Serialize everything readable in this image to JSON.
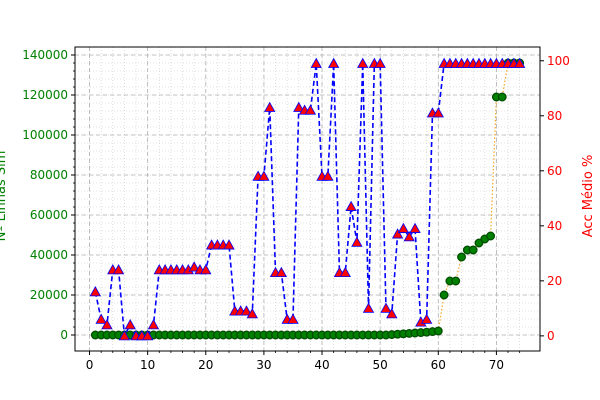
{
  "chart_data": {
    "type": "line",
    "xlabel": "",
    "ylabel_left": "Nº Linhas Sim",
    "ylabel_right": "Acc Médio %",
    "xlim": [
      -2.5,
      77.5
    ],
    "ylim_left": [
      -8000,
      144000
    ],
    "ylim_right": [
      -5.5,
      105
    ],
    "x_ticks": [
      0,
      10,
      20,
      30,
      40,
      50,
      60,
      70
    ],
    "y_left_ticks": [
      0,
      20000,
      40000,
      60000,
      80000,
      100000,
      120000,
      140000
    ],
    "y_right_ticks": [
      0,
      20,
      40,
      60,
      80,
      100
    ],
    "grid": true,
    "colors": {
      "left_axis": "#008000",
      "right_axis": "#ff0000",
      "acc_line": "#0000ff",
      "acc_marker": "#ff0000",
      "acc_marker_edge": "#0000ff",
      "rows_line": "#f5a623",
      "rows_marker": "#008000",
      "rows_marker_edge": "#004d00",
      "grid": "#b0b0b0"
    },
    "series": [
      {
        "axis": "right",
        "marker": "triangle",
        "x": [
          1,
          2,
          3,
          4,
          5,
          6,
          7,
          8,
          9,
          10,
          11,
          12,
          13,
          14,
          15,
          16,
          17,
          18,
          19,
          20,
          21,
          22,
          23,
          24,
          25,
          26,
          27,
          28,
          29,
          30,
          31,
          32,
          33,
          34,
          35,
          36,
          37,
          38,
          39,
          40,
          41,
          42,
          43,
          44,
          45,
          46,
          47,
          48,
          49,
          50,
          51,
          52,
          53,
          54,
          55,
          56,
          57,
          58,
          59,
          60,
          61,
          62,
          63,
          64,
          65,
          66,
          67,
          68,
          69,
          70,
          71,
          72,
          73,
          74
        ],
        "values": [
          16,
          6,
          4,
          24,
          24,
          0,
          4,
          0,
          0,
          0,
          4,
          24,
          24,
          24,
          24,
          24,
          24,
          25,
          24,
          24,
          33,
          33,
          33,
          33,
          9,
          9,
          9,
          8,
          58,
          58,
          83,
          23,
          23,
          6,
          6,
          83,
          82,
          82,
          99,
          58,
          58,
          99,
          23,
          23,
          47,
          34,
          99,
          10,
          99,
          99,
          10,
          8,
          37,
          39,
          36,
          39,
          5,
          6,
          81,
          81,
          99,
          99,
          99,
          99,
          99,
          99,
          99,
          99,
          99,
          99,
          99,
          99,
          99,
          99
        ]
      },
      {
        "axis": "left",
        "marker": "circle",
        "x": [
          1,
          2,
          3,
          4,
          5,
          6,
          7,
          8,
          9,
          10,
          11,
          12,
          13,
          14,
          15,
          16,
          17,
          18,
          19,
          20,
          21,
          22,
          23,
          24,
          25,
          26,
          27,
          28,
          29,
          30,
          31,
          32,
          33,
          34,
          35,
          36,
          37,
          38,
          39,
          40,
          41,
          42,
          43,
          44,
          45,
          46,
          47,
          48,
          49,
          50,
          51,
          52,
          53,
          54,
          55,
          56,
          57,
          58,
          59,
          60,
          61,
          62,
          63,
          64,
          65,
          66,
          67,
          68,
          69,
          70,
          71,
          72,
          73,
          74
        ],
        "values": [
          0,
          0,
          0,
          0,
          0,
          0,
          0,
          0,
          0,
          0,
          0,
          0,
          0,
          0,
          0,
          0,
          0,
          0,
          0,
          0,
          0,
          0,
          0,
          0,
          0,
          0,
          0,
          0,
          0,
          0,
          0,
          0,
          0,
          0,
          0,
          0,
          0,
          0,
          0,
          0,
          0,
          0,
          0,
          0,
          0,
          0,
          0,
          0,
          0,
          0,
          0,
          200,
          400,
          600,
          800,
          1000,
          1200,
          1400,
          1700,
          2000,
          20000,
          27000,
          27000,
          39000,
          42500,
          42500,
          46000,
          48000,
          49500,
          119000,
          119000,
          136000,
          136000,
          136000
        ]
      }
    ]
  }
}
